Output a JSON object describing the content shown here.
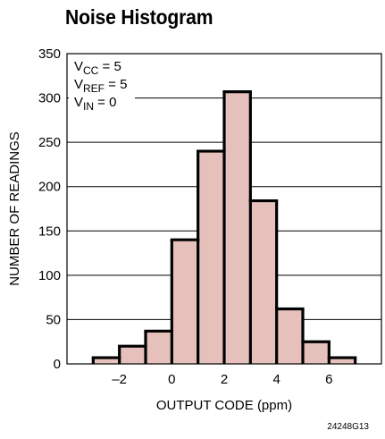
{
  "chart_data": {
    "type": "bar",
    "title": "Noise Histogram",
    "xlabel": "OUTPUT CODE (ppm)",
    "ylabel": "NUMBER OF READINGS",
    "xlim": [
      -4,
      8
    ],
    "ylim": [
      0,
      350
    ],
    "xticks": [
      -2,
      0,
      2,
      4,
      6
    ],
    "xtick_labels": [
      "–2",
      "0",
      "2",
      "4",
      "6"
    ],
    "yticks": [
      0,
      50,
      100,
      150,
      200,
      250,
      300,
      350
    ],
    "grid": "horizontal",
    "bins": [
      {
        "from": -3,
        "to": -2,
        "value": 7
      },
      {
        "from": -2,
        "to": -1,
        "value": 20
      },
      {
        "from": -1,
        "to": 0,
        "value": 37
      },
      {
        "from": 0,
        "to": 1,
        "value": 140
      },
      {
        "from": 1,
        "to": 2,
        "value": 240
      },
      {
        "from": 2,
        "to": 3,
        "value": 307
      },
      {
        "from": 3,
        "to": 4,
        "value": 184
      },
      {
        "from": 4,
        "to": 5,
        "value": 62
      },
      {
        "from": 5,
        "to": 6,
        "value": 25
      },
      {
        "from": 6,
        "to": 7,
        "value": 7
      }
    ],
    "annotations": [
      {
        "main": "V",
        "sub": "CC",
        "rest": " = 5"
      },
      {
        "main": "V",
        "sub": "REF",
        "rest": " = 5"
      },
      {
        "main": "V",
        "sub": "IN",
        "rest": " = 0"
      }
    ],
    "colors": {
      "fill": "#e6c1bc",
      "stroke": "#000000",
      "grid": "#000000"
    }
  },
  "figure_code": "24248G13"
}
